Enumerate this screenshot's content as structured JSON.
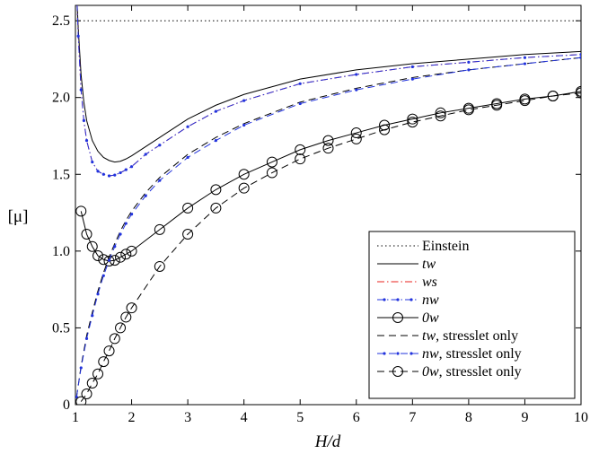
{
  "chart_data": {
    "type": "line",
    "xlabel": "H/d",
    "ylabel": "[μ]",
    "xlim": [
      1,
      10
    ],
    "ylim": [
      0,
      2.6
    ],
    "xticks": [
      "1",
      "2",
      "3",
      "4",
      "5",
      "6",
      "7",
      "8",
      "9",
      "10"
    ],
    "yticks": [
      "0",
      "0.5",
      "1.0",
      "1.5",
      "2.0",
      "2.5"
    ],
    "grid": false,
    "legend_position": "bottom-right",
    "series": [
      {
        "name": "Einstein",
        "style": "dotted",
        "color": "#000000",
        "marker": "none",
        "x": [
          1,
          10
        ],
        "y": [
          2.5,
          2.5
        ]
      },
      {
        "name": "tw",
        "style": "solid",
        "color": "#000000",
        "marker": "none",
        "x": [
          1.02,
          1.05,
          1.1,
          1.15,
          1.2,
          1.3,
          1.4,
          1.5,
          1.6,
          1.7,
          1.8,
          1.9,
          2.0,
          2.25,
          2.5,
          3.0,
          3.5,
          4.0,
          5.0,
          6.0,
          7.0,
          8.0,
          9.0,
          10.0
        ],
        "y": [
          2.7,
          2.45,
          2.15,
          1.97,
          1.85,
          1.72,
          1.65,
          1.61,
          1.59,
          1.58,
          1.585,
          1.6,
          1.62,
          1.68,
          1.74,
          1.86,
          1.95,
          2.02,
          2.12,
          2.18,
          2.22,
          2.25,
          2.28,
          2.3
        ]
      },
      {
        "name": "ws",
        "style": "dashdot",
        "color": "#e8201e",
        "marker": "none",
        "x": [
          1.02,
          1.05,
          1.1,
          1.15,
          1.2,
          1.3,
          1.4,
          1.5,
          1.6,
          1.7,
          1.8,
          1.9,
          2.0,
          2.25,
          2.5,
          3.0,
          3.5,
          4.0,
          5.0,
          6.0,
          7.0,
          8.0,
          9.0,
          10.0
        ],
        "y": [
          2.7,
          2.4,
          2.05,
          1.85,
          1.72,
          1.58,
          1.52,
          1.5,
          1.49,
          1.495,
          1.51,
          1.53,
          1.55,
          1.63,
          1.69,
          1.81,
          1.91,
          1.98,
          2.09,
          2.15,
          2.2,
          2.23,
          2.26,
          2.28
        ]
      },
      {
        "name": "nw",
        "style": "dashdot",
        "color": "#2233dd",
        "marker": "dot",
        "x": [
          1.02,
          1.05,
          1.1,
          1.15,
          1.2,
          1.3,
          1.4,
          1.5,
          1.6,
          1.7,
          1.8,
          1.9,
          2.0,
          2.25,
          2.5,
          3.0,
          3.5,
          4.0,
          5.0,
          6.0,
          7.0,
          8.0,
          9.0,
          10.0
        ],
        "y": [
          2.7,
          2.4,
          2.05,
          1.85,
          1.72,
          1.58,
          1.52,
          1.5,
          1.49,
          1.495,
          1.51,
          1.53,
          1.55,
          1.63,
          1.69,
          1.81,
          1.91,
          1.98,
          2.09,
          2.15,
          2.2,
          2.23,
          2.26,
          2.28
        ]
      },
      {
        "name": "0w",
        "style": "solid",
        "color": "#000000",
        "marker": "circle",
        "x": [
          1.1,
          1.2,
          1.3,
          1.4,
          1.5,
          1.6,
          1.7,
          1.8,
          1.9,
          2.0,
          2.5,
          3.0,
          3.5,
          4.0,
          4.5,
          5.0,
          5.5,
          6.0,
          6.5,
          7.0,
          7.5,
          8.0,
          8.5,
          9.0,
          9.5,
          10.0
        ],
        "y": [
          1.26,
          1.11,
          1.03,
          0.97,
          0.945,
          0.935,
          0.94,
          0.96,
          0.98,
          1.0,
          1.14,
          1.28,
          1.4,
          1.5,
          1.58,
          1.66,
          1.72,
          1.77,
          1.82,
          1.86,
          1.9,
          1.93,
          1.96,
          1.99,
          2.01,
          2.04
        ]
      },
      {
        "name": "tw, stresslet only",
        "style": "dashed",
        "color": "#000000",
        "marker": "none",
        "x": [
          1.02,
          1.1,
          1.2,
          1.3,
          1.4,
          1.5,
          1.6,
          1.7,
          1.8,
          1.9,
          2.0,
          2.25,
          2.5,
          3.0,
          3.5,
          4.0,
          5.0,
          6.0,
          7.0,
          8.0,
          9.0,
          10.0
        ],
        "y": [
          0.05,
          0.25,
          0.45,
          0.6,
          0.74,
          0.86,
          0.96,
          1.05,
          1.13,
          1.2,
          1.26,
          1.38,
          1.48,
          1.63,
          1.74,
          1.83,
          1.97,
          2.06,
          2.13,
          2.18,
          2.22,
          2.26
        ]
      },
      {
        "name": "nw, stresslet only",
        "style": "dashed",
        "color": "#2233dd",
        "marker": "dot",
        "x": [
          1.02,
          1.1,
          1.2,
          1.3,
          1.4,
          1.5,
          1.6,
          1.7,
          1.8,
          1.9,
          2.0,
          2.25,
          2.5,
          3.0,
          3.5,
          4.0,
          5.0,
          6.0,
          7.0,
          8.0,
          9.0,
          10.0
        ],
        "y": [
          0.05,
          0.24,
          0.43,
          0.58,
          0.72,
          0.84,
          0.94,
          1.03,
          1.11,
          1.18,
          1.24,
          1.36,
          1.46,
          1.61,
          1.72,
          1.82,
          1.96,
          2.05,
          2.12,
          2.18,
          2.22,
          2.26
        ]
      },
      {
        "name": "0w, stresslet only",
        "style": "dashed",
        "color": "#000000",
        "marker": "circle",
        "x": [
          1.1,
          1.2,
          1.3,
          1.4,
          1.5,
          1.6,
          1.7,
          1.8,
          1.9,
          2.0,
          2.5,
          3.0,
          3.5,
          4.0,
          4.5,
          5.0,
          5.5,
          6.0,
          6.5,
          7.0,
          7.5,
          8.0,
          8.5,
          9.0,
          9.5,
          10.0
        ],
        "y": [
          0.02,
          0.07,
          0.14,
          0.2,
          0.28,
          0.35,
          0.43,
          0.5,
          0.57,
          0.63,
          0.9,
          1.11,
          1.28,
          1.41,
          1.51,
          1.6,
          1.67,
          1.73,
          1.79,
          1.84,
          1.88,
          1.92,
          1.95,
          1.98,
          2.01,
          2.03
        ]
      }
    ]
  },
  "legend": {
    "entries": [
      {
        "text": "Einstein",
        "italic": "",
        "rest": ""
      },
      {
        "text": "",
        "italic": "tw",
        "rest": ""
      },
      {
        "text": "",
        "italic": "ws",
        "rest": ""
      },
      {
        "text": "",
        "italic": "nw",
        "rest": ""
      },
      {
        "text": "",
        "italic": "0w",
        "rest": ""
      },
      {
        "text": "",
        "italic": "tw",
        "rest": ", stresslet only"
      },
      {
        "text": "",
        "italic": "nw",
        "rest": ", stresslet only"
      },
      {
        "text": "",
        "italic": "0w",
        "rest": ", stresslet only"
      }
    ]
  }
}
